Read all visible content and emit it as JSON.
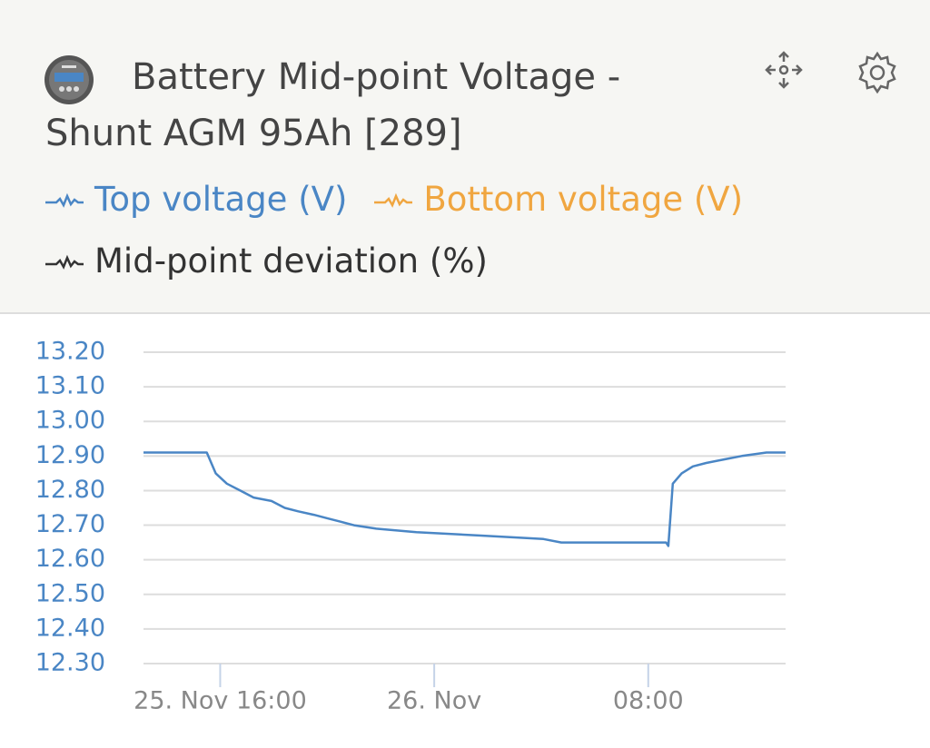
{
  "chart_data": {
    "type": "line",
    "title": "Battery Mid-point Voltage - Shunt AGM 95Ah [289]",
    "x": [
      "25. Nov 13:08",
      "25. Nov 15:30",
      "25. Nov 15:50",
      "25. Nov 16:15",
      "25. Nov 16:45",
      "25. Nov 17:15",
      "25. Nov 17:55",
      "25. Nov 18:25",
      "25. Nov 18:55",
      "25. Nov 19:30",
      "25. Nov 20:00",
      "25. Nov 20:30",
      "25. Nov 21:00",
      "25. Nov 21:50",
      "25. Nov 23:20",
      "26. Nov 01:45",
      "26. Nov 04:05",
      "26. Nov 04:45",
      "26. Nov 08:40",
      "26. Nov 08:45",
      "26. Nov 08:55",
      "26. Nov 09:15",
      "26. Nov 09:40",
      "26. Nov 10:10",
      "26. Nov 10:50",
      "26. Nov 11:30",
      "26. Nov 12:25",
      "26. Nov 13:08"
    ],
    "series": [
      {
        "name": "Top voltage (V)",
        "color": "#4a86c5",
        "values": [
          12.91,
          12.91,
          12.85,
          12.82,
          12.8,
          12.78,
          12.77,
          12.75,
          12.74,
          12.73,
          12.72,
          12.71,
          12.7,
          12.69,
          12.68,
          12.67,
          12.66,
          12.65,
          12.65,
          12.64,
          12.82,
          12.85,
          12.87,
          12.88,
          12.89,
          12.9,
          12.91,
          12.91
        ]
      },
      {
        "name": "Bottom voltage (V)",
        "color": "#f0a640",
        "values": [
          null,
          null,
          null,
          null,
          null,
          null,
          null,
          null,
          null,
          null,
          null,
          null,
          null,
          null,
          null,
          null,
          null,
          null,
          null,
          null,
          null,
          null,
          null,
          null,
          null,
          null,
          null,
          null
        ]
      },
      {
        "name": "Mid-point deviation (%)",
        "color": "#333333",
        "values": [
          null,
          null,
          null,
          null,
          null,
          null,
          null,
          null,
          null,
          null,
          null,
          null,
          null,
          null,
          null,
          null,
          null,
          null,
          null,
          null,
          null,
          null,
          null,
          null,
          null,
          null,
          null,
          null
        ]
      }
    ],
    "xlim": [
      "25. Nov 13:08",
      "26. Nov 13:08"
    ],
    "xticks": [
      "25. Nov 16:00",
      {
        "value": "26. Nov 00:00",
        "label": "26. Nov"
      },
      {
        "value": "26. Nov 08:00",
        "label": "08:00"
      }
    ],
    "ylim": [
      12.3,
      13.2
    ],
    "yticks": [
      {
        "value": 12.3,
        "label": "12.30"
      },
      {
        "value": 12.4,
        "label": "12.40"
      },
      {
        "value": 12.5,
        "label": "12.50"
      },
      {
        "value": 12.6,
        "label": "12.60"
      },
      {
        "value": 12.7,
        "label": "12.70"
      },
      {
        "value": 12.8,
        "label": "12.80"
      },
      {
        "value": 12.9,
        "label": "12.90"
      },
      {
        "value": 13.0,
        "label": "13.00"
      },
      {
        "value": 13.1,
        "label": "13.10"
      },
      {
        "value": 13.2,
        "label": "13.20"
      }
    ],
    "grid": true
  }
}
